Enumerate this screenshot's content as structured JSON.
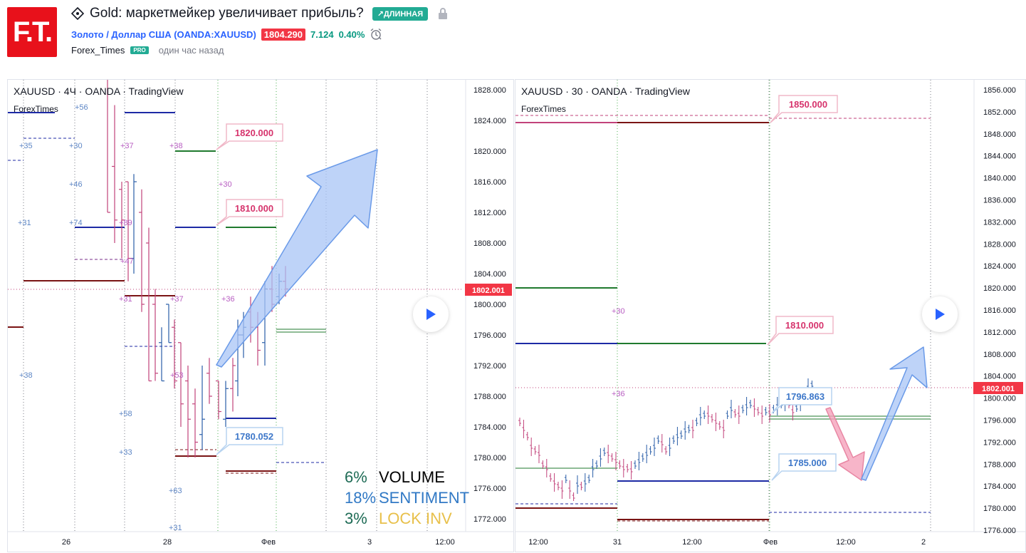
{
  "header": {
    "logo_text": "F.T.",
    "title": "Gold: маркетмейкер увеличивает прибыль?",
    "direction_badge": "↗ДЛИННАЯ",
    "symbol": "Золото / Доллар США (OANDA:XAUUSD)",
    "price": "1804.290",
    "change": "7.124",
    "change_pct": "0.40%",
    "author": "Forex_Times",
    "author_badge": "PRO",
    "published": "один час назад",
    "icons": [
      "idea-diamond-icon",
      "lock-icon",
      "alarm-icon"
    ]
  },
  "left_chart": {
    "title": "XAUUSD · 4Ч · OANDA · TradingView",
    "subtitle": "ForexTimes",
    "last_price": "1802.001",
    "price_scale": [
      "1828.000",
      "1824.000",
      "1820.000",
      "1816.000",
      "1812.000",
      "1808.000",
      "1804.000",
      "1800.000",
      "1796.000",
      "1792.000",
      "1788.000",
      "1784.000",
      "1780.000",
      "1776.000",
      "1772.000"
    ],
    "time_scale": [
      "26",
      "28",
      "Фев",
      "3",
      "12:00"
    ],
    "callouts": [
      "1820.000",
      "1810.000",
      "1780.052"
    ],
    "level_labels": [
      "+56",
      "+35",
      "+30",
      "+37",
      "+38",
      "+46",
      "+30",
      "+31",
      "+74",
      "+89",
      "+47",
      "+37",
      "+31",
      "+36",
      "+53",
      "+38",
      "+58",
      "+33",
      "+63",
      "+31"
    ],
    "legend": [
      {
        "pct": "6%",
        "label": "VOLUME",
        "pct_color": "#1e6b55",
        "label_color": "#000000"
      },
      {
        "pct": "18%",
        "label": "SENTIMENT",
        "pct_color": "#3179c5",
        "label_color": "#3179c5"
      },
      {
        "pct": "3%",
        "label": "LOCK INV",
        "pct_color": "#1e6b55",
        "label_color": "#e8c04a"
      }
    ]
  },
  "right_chart": {
    "title": "XAUUSD · 30 · OANDA · TradingView",
    "subtitle": "ForexTimes",
    "last_price": "1802.001",
    "price_scale": [
      "1856.000",
      "1852.000",
      "1848.000",
      "1844.000",
      "1840.000",
      "1836.000",
      "1832.000",
      "1828.000",
      "1824.000",
      "1820.000",
      "1816.000",
      "1812.000",
      "1808.000",
      "1804.000",
      "1800.000",
      "1796.000",
      "1792.000",
      "1788.000",
      "1784.000",
      "1780.000",
      "1776.000"
    ],
    "time_scale": [
      "12:00",
      "31",
      "12:00",
      "Фев",
      "12:00",
      "2"
    ],
    "callouts": [
      "1850.000",
      "1810.000",
      "1796.863",
      "1785.000"
    ],
    "level_labels": [
      "+30",
      "+36"
    ]
  },
  "colors": {
    "bull": "#2a5ea8",
    "bear": "#c2427a",
    "last_price": "#f23645",
    "pink_callout": "#d6336c",
    "blue_callout": "#3d77c9",
    "accent": "#22ab94"
  }
}
